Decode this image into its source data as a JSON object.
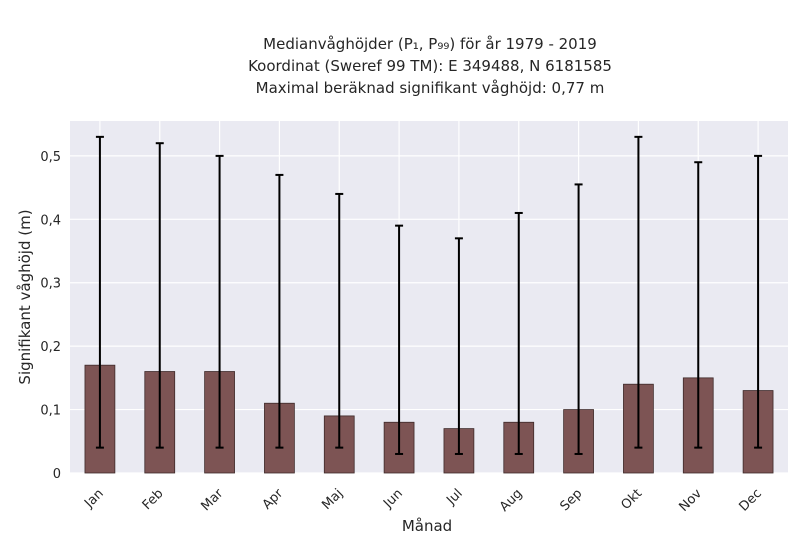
{
  "chart_data": {
    "type": "bar",
    "title_lines": [
      "Medianvåghöjder (P₁, P₉₉) för år 1979 - 2019",
      "Koordinat (Sweref 99 TM): E 349488, N 6181585",
      "Maximal beräknad signifikant våghöjd: 0,77 m"
    ],
    "xlabel": "Månad",
    "ylabel": "Signifikant våghöjd (m)",
    "categories": [
      "Jan",
      "Feb",
      "Mar",
      "Apr",
      "Maj",
      "Jun",
      "Jul",
      "Aug",
      "Sep",
      "Okt",
      "Nov",
      "Dec"
    ],
    "values": [
      0.17,
      0.16,
      0.16,
      0.11,
      0.09,
      0.08,
      0.07,
      0.08,
      0.1,
      0.14,
      0.15,
      0.13
    ],
    "p1": [
      0.04,
      0.04,
      0.04,
      0.04,
      0.04,
      0.03,
      0.03,
      0.03,
      0.03,
      0.04,
      0.04,
      0.04
    ],
    "p99": [
      0.53,
      0.52,
      0.5,
      0.47,
      0.44,
      0.39,
      0.37,
      0.41,
      0.455,
      0.53,
      0.49,
      0.5
    ],
    "ylim": [
      0,
      0.555
    ],
    "yticks": [
      0,
      0.1,
      0.2,
      0.3,
      0.4,
      0.5
    ],
    "ytick_labels": [
      "0",
      "0,1",
      "0,2",
      "0,3",
      "0,4",
      "0,5"
    ],
    "grid": true,
    "colors": {
      "bar": "#7d5454",
      "bar_edge": "#3e2a2a",
      "error": "#000000",
      "plot_bg": "#eaeaf2",
      "grid": "#ffffff"
    }
  }
}
